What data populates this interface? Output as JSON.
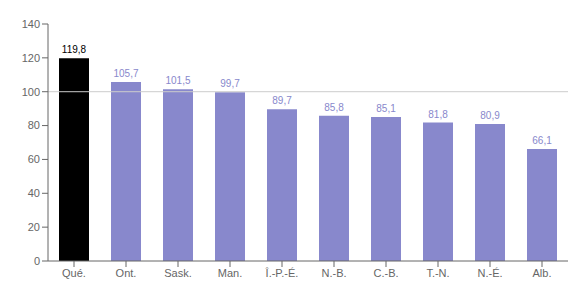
{
  "chart_data": {
    "type": "bar",
    "categories": [
      "Qué.",
      "Ont.",
      "Sask.",
      "Man.",
      "Î.-P.-É.",
      "N.-B.",
      "C.-B.",
      "T.-N.",
      "N.-É.",
      "Alb."
    ],
    "values": [
      119.8,
      105.7,
      101.5,
      99.7,
      89.7,
      85.8,
      85.1,
      81.8,
      80.9,
      66.1
    ],
    "value_labels": [
      "119,8",
      "105,7",
      "101,5",
      "99,7",
      "89,7",
      "85,8",
      "85,1",
      "81,8",
      "80,9",
      "66,1"
    ],
    "colors": [
      "#000000",
      "#8888cc",
      "#8888cc",
      "#8888cc",
      "#8888cc",
      "#8888cc",
      "#8888cc",
      "#8888cc",
      "#8888cc",
      "#8888cc"
    ],
    "ylim": [
      0,
      140
    ],
    "yticks": [
      0,
      20,
      40,
      60,
      80,
      100,
      120,
      140
    ],
    "reference_line": 100,
    "data_labels": true,
    "grid": false
  }
}
